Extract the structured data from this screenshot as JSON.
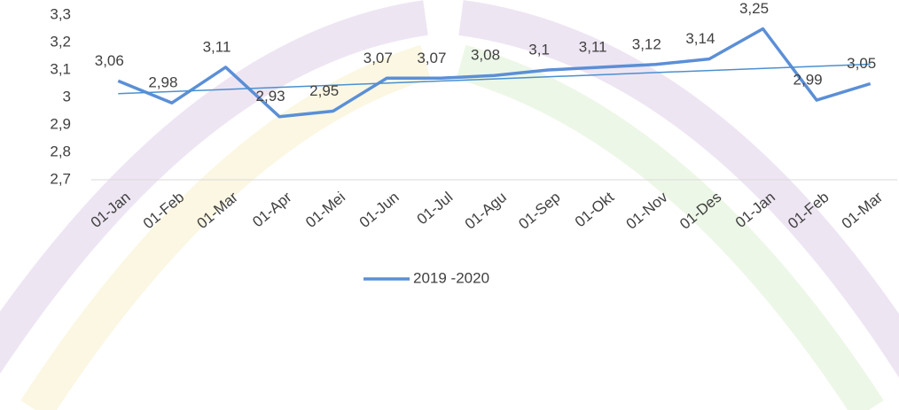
{
  "chart_data": {
    "type": "line",
    "categories": [
      "01-Jan",
      "01-Feb",
      "01-Mar",
      "01-Apr",
      "01-Mei",
      "01-Jun",
      "01-Jul",
      "01-Agu",
      "01-Sep",
      "01-Okt",
      "01-Nov",
      "01-Des",
      "01-Jan",
      "01-Feb",
      "01-Mar"
    ],
    "series": [
      {
        "name": "2019 -2020",
        "color": "#5b8fd6",
        "values": [
          3.06,
          2.98,
          3.11,
          2.93,
          2.95,
          3.07,
          3.07,
          3.08,
          3.1,
          3.11,
          3.12,
          3.14,
          3.25,
          2.99,
          3.05
        ],
        "value_labels": [
          "3,06",
          "2,98",
          "3,11",
          "2,93",
          "2,95",
          "3,07",
          "3,07",
          "3,08",
          "3,1",
          "3,11",
          "3,12",
          "3,14",
          "3,25",
          "2,99",
          "3,05"
        ]
      }
    ],
    "ylim": [
      2.7,
      3.3
    ],
    "yticks": [
      {
        "value": 2.7,
        "label": "2,7"
      },
      {
        "value": 2.8,
        "label": "2,8"
      },
      {
        "value": 2.9,
        "label": "2,9"
      },
      3,
      {
        "value": 3.1,
        "label": "3,1"
      },
      {
        "value": 3.2,
        "label": "3,2"
      },
      {
        "value": 3.3,
        "label": "3,3"
      }
    ],
    "trendline": true,
    "trendline_color": "#4a90d0",
    "legend": "bottom",
    "grid": false
  }
}
